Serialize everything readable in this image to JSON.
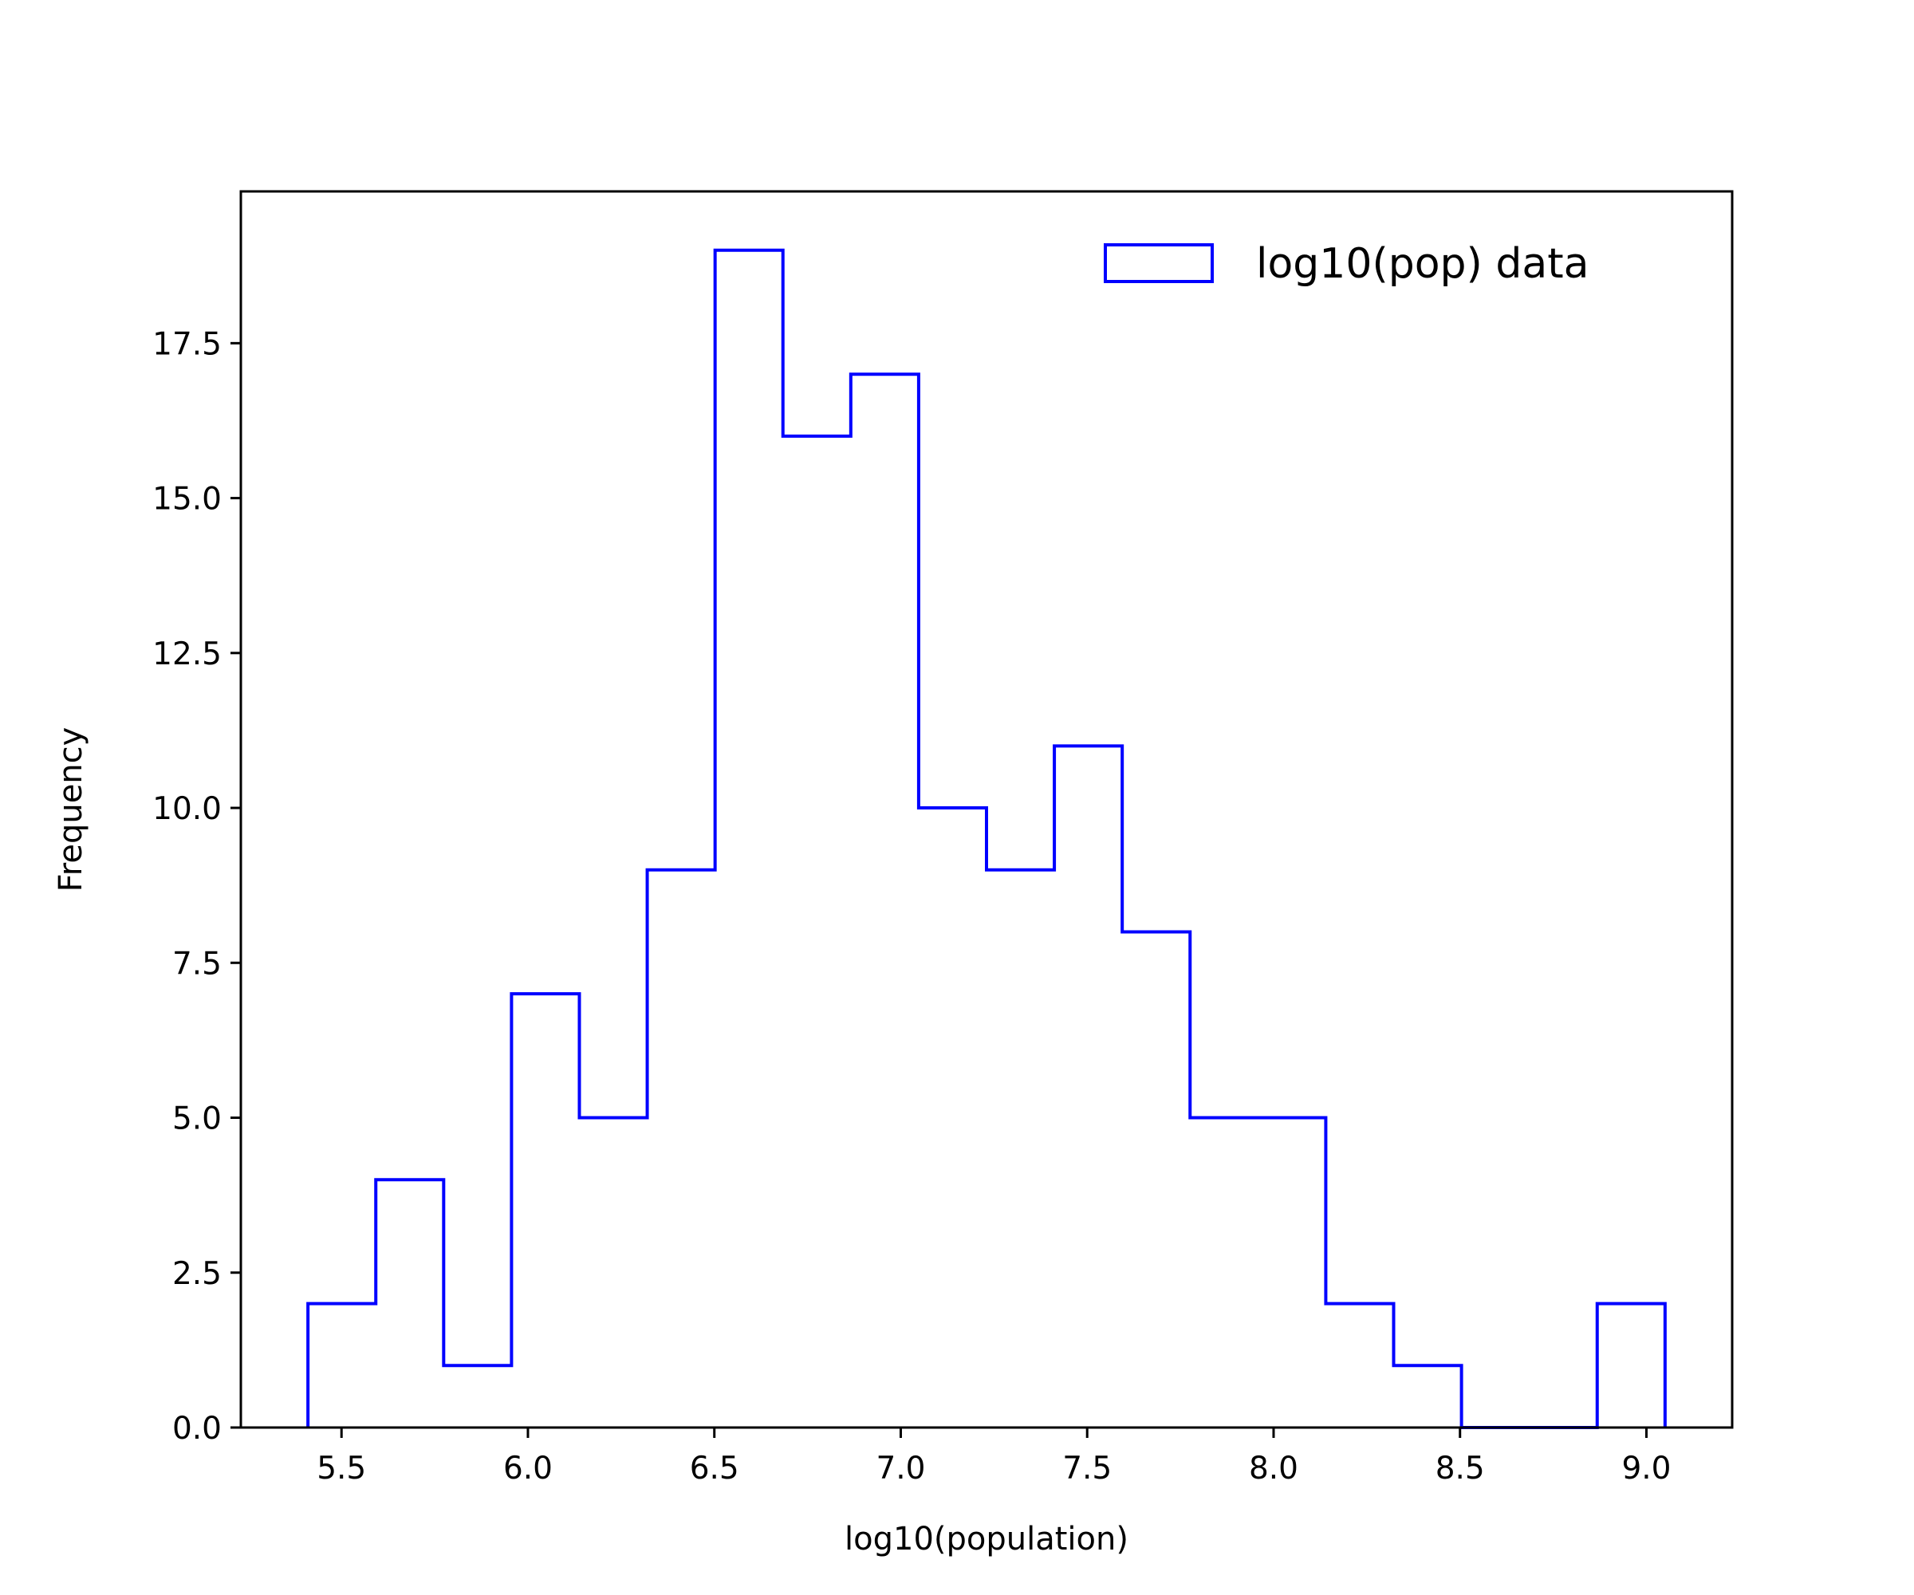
{
  "colors": {
    "series": "#0000ff",
    "axes": "#000000",
    "background": "#ffffff"
  },
  "chart_data": {
    "type": "histogram",
    "title": "",
    "xlabel": "log10(population)",
    "ylabel": "Frequency",
    "xlim": [
      5.23,
      9.23
    ],
    "ylim": [
      0,
      19.95
    ],
    "xticks": [
      5.5,
      6.0,
      6.5,
      7.0,
      7.5,
      8.0,
      8.5,
      9.0
    ],
    "xtick_labels": [
      "5.5",
      "6.0",
      "6.5",
      "7.0",
      "7.5",
      "8.0",
      "8.5",
      "9.0"
    ],
    "yticks": [
      0,
      2.5,
      5,
      7.5,
      10,
      12.5,
      15,
      17.5
    ],
    "ytick_labels": [
      "0.0",
      "2.5",
      "5.0",
      "7.5",
      "10.0",
      "12.5",
      "15.0",
      "17.5"
    ],
    "histtype": "step",
    "grid": false,
    "legend": {
      "position": "upper right",
      "entries": [
        "log10(pop) data"
      ]
    },
    "series": [
      {
        "name": "log10(pop) data",
        "bin_edges": [
          5.41,
          5.592,
          5.774,
          5.956,
          6.138,
          6.32,
          6.502,
          6.684,
          6.866,
          7.048,
          7.23,
          7.412,
          7.594,
          7.776,
          7.958,
          8.14,
          8.322,
          8.504,
          8.686,
          8.868,
          9.05
        ],
        "counts": [
          2,
          4,
          1,
          7,
          5,
          9,
          19,
          16,
          17,
          10,
          9,
          11,
          8,
          5,
          5,
          2,
          1,
          0,
          0,
          2
        ]
      }
    ]
  }
}
